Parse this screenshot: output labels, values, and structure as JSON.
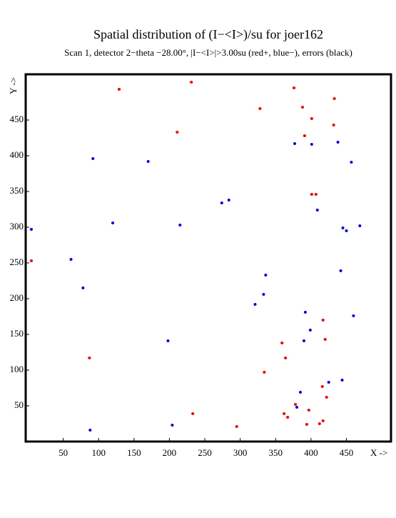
{
  "chart_data": {
    "type": "scatter",
    "title": "Spatial distribution of (I−<I>)/su for joer162",
    "subtitle": "Scan  1, detector 2−theta −28.00°, |I−<I>|>3.00su (red+, blue−), errors (black)",
    "x_label": "X ->",
    "y_label": "Y ->",
    "xlim": [
      -3,
      513
    ],
    "ylim": [
      0,
      514
    ],
    "xticks": [
      50,
      100,
      150,
      200,
      250,
      300,
      350,
      400,
      450
    ],
    "yticks": [
      50,
      100,
      150,
      200,
      250,
      300,
      350,
      400,
      450
    ],
    "series": [
      {
        "color": "#ff0000",
        "x": [
          129,
          231,
          376,
          211,
          328,
          388,
          401,
          433,
          432,
          391,
          401,
          407,
          5,
          417,
          359,
          420,
          87,
          364,
          334,
          416,
          422,
          378,
          397,
          362,
          367,
          233,
          417,
          412,
          394,
          295
        ],
        "values": [
          493,
          503,
          495,
          433,
          466,
          468,
          452,
          480,
          443,
          428,
          346,
          346,
          253,
          170,
          138,
          143,
          117,
          117,
          97,
          77,
          62,
          52,
          44,
          39,
          34,
          39,
          29,
          25,
          24,
          21
        ]
      },
      {
        "color": "#0000ff",
        "x": [
          92,
          170,
          377,
          401,
          438,
          457,
          284,
          274,
          409,
          215,
          120,
          5,
          445,
          450,
          469,
          61,
          442,
          336,
          78,
          333,
          321,
          392,
          460,
          399,
          198,
          390,
          425,
          444,
          385,
          380,
          204,
          88
        ],
        "values": [
          396,
          392,
          417,
          416,
          419,
          391,
          338,
          334,
          324,
          303,
          306,
          297,
          299,
          295,
          302,
          255,
          239,
          233,
          215,
          206,
          192,
          181,
          176,
          156,
          141,
          141,
          83,
          86,
          69,
          48,
          23,
          16
        ]
      }
    ]
  }
}
